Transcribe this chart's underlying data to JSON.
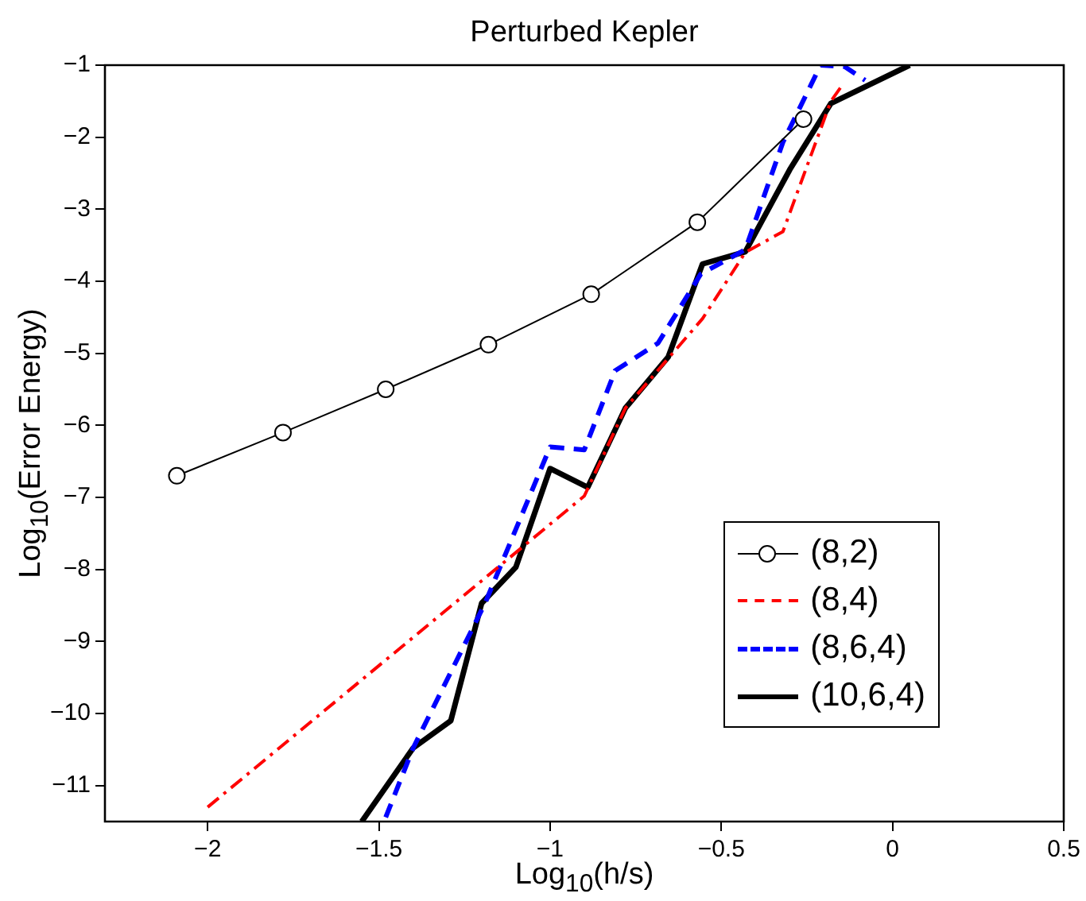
{
  "chart_data": {
    "type": "line",
    "title": "Perturbed Kepler",
    "xlabel": "Log$_{10}$(h/s)",
    "ylabel": "Log$_{10}$(Error Energy)",
    "xlim": [
      -2.3,
      0.5
    ],
    "xticks": [
      -2,
      -1.5,
      -1,
      -0.5,
      0,
      0.5
    ],
    "ylim": [
      -11.5,
      -1
    ],
    "yticks": [
      -11,
      -10,
      -9,
      -8,
      -7,
      -6,
      -5,
      -4,
      -3,
      -2,
      -1
    ],
    "grid": false,
    "legend": "right",
    "series": [
      {
        "name": "(8,2)",
        "color": "#000000",
        "marker": "circle",
        "line_style": "solid",
        "x": [
          -2.09,
          -1.78,
          -1.48,
          -1.18,
          -0.88,
          -0.57,
          -0.26
        ],
        "values": [
          -6.7,
          -6.1,
          -5.5,
          -4.88,
          -4.18,
          -3.18,
          -1.75
        ]
      },
      {
        "name": "(8,4)",
        "color": "#ff0000",
        "line_style": "dashdot",
        "x": [
          -2.0,
          -0.9,
          -0.78,
          -0.555,
          -0.43,
          -0.32,
          -0.18,
          -0.15
        ],
        "values": [
          -11.3,
          -6.98,
          -5.76,
          -4.52,
          -3.6,
          -3.31,
          -1.5,
          -1.3
        ]
      },
      {
        "name": "(8,6,4)",
        "color": "#0000ff",
        "line_style": "dashed",
        "x": [
          -1.48,
          -1.4,
          -1.19,
          -1.0,
          -0.9,
          -0.81,
          -0.685,
          -0.56,
          -0.43,
          -0.32,
          -0.21,
          -0.14,
          -0.08
        ],
        "values": [
          -11.44,
          -10.48,
          -8.47,
          -6.3,
          -6.34,
          -5.24,
          -4.86,
          -3.9,
          -3.56,
          -2.07,
          -1.0,
          -1.02,
          -1.21
        ]
      },
      {
        "name": "(10,6,4)",
        "color": "#000000",
        "line_style": "solid",
        "x": [
          -1.55,
          -1.4,
          -1.29,
          -1.2,
          -1.1,
          -1.0,
          -0.89,
          -0.78,
          -0.655,
          -0.555,
          -0.43,
          -0.3,
          -0.18,
          0.05
        ],
        "values": [
          -11.5,
          -10.48,
          -10.1,
          -8.47,
          -7.97,
          -6.6,
          -6.86,
          -5.76,
          -5.05,
          -3.76,
          -3.59,
          -2.45,
          -1.53,
          -1.0
        ]
      }
    ]
  }
}
